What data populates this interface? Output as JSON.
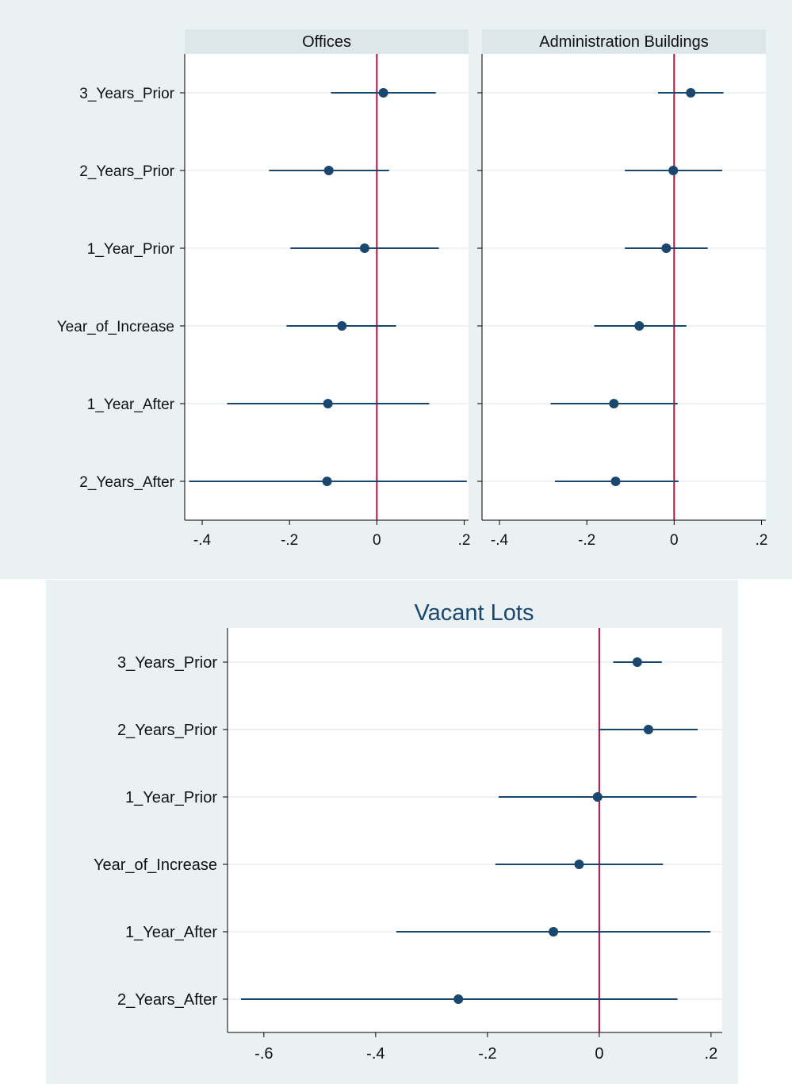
{
  "chart_data": [
    {
      "type": "scatter",
      "subtype": "coefficient-plot",
      "panel": "Offices",
      "categories": [
        "3_Years_Prior",
        "2_Years_Prior",
        "1_Year_Prior",
        "Year_of_Increase",
        "1_Year_After",
        "2_Years_After"
      ],
      "estimates": [
        0.015,
        -0.11,
        -0.028,
        -0.08,
        -0.112,
        -0.114
      ],
      "ci_low": [
        -0.105,
        -0.247,
        -0.198,
        -0.207,
        -0.343,
        -0.43
      ],
      "ci_high": [
        0.135,
        0.028,
        0.142,
        0.044,
        0.12,
        0.206
      ],
      "reference_line": 0,
      "xlim": [
        -0.44,
        0.21
      ],
      "xticks": [
        -0.4,
        -0.2,
        0,
        0.2
      ],
      "xtick_labels": [
        "-.4",
        "-.2",
        "0",
        ".2"
      ],
      "grid": true
    },
    {
      "type": "scatter",
      "subtype": "coefficient-plot",
      "panel": "Administration Buildings",
      "categories": [
        "3_Years_Prior",
        "2_Years_Prior",
        "1_Year_Prior",
        "Year_of_Increase",
        "1_Year_After",
        "2_Years_After"
      ],
      "estimates": [
        0.038,
        -0.002,
        -0.018,
        -0.08,
        -0.138,
        -0.134
      ],
      "ci_low": [
        -0.037,
        -0.113,
        -0.113,
        -0.183,
        -0.283,
        -0.273
      ],
      "ci_high": [
        0.113,
        0.11,
        0.077,
        0.028,
        0.008,
        0.01
      ],
      "reference_line": 0,
      "xlim": [
        -0.44,
        0.21
      ],
      "xticks": [
        -0.4,
        -0.2,
        0,
        0.2
      ],
      "xtick_labels": [
        "-.4",
        "-.2",
        "0",
        ".2"
      ],
      "grid": true
    },
    {
      "type": "scatter",
      "subtype": "coefficient-plot",
      "title": "Vacant Lots",
      "categories": [
        "3_Years_Prior",
        "2_Years_Prior",
        "1_Year_Prior",
        "Year_of_Increase",
        "1_Year_After",
        "2_Years_After"
      ],
      "estimates": [
        0.068,
        0.088,
        -0.003,
        -0.036,
        -0.082,
        -0.252
      ],
      "ci_low": [
        0.025,
        0.0,
        -0.18,
        -0.186,
        -0.363,
        -0.641
      ],
      "ci_high": [
        0.112,
        0.176,
        0.174,
        0.114,
        0.199,
        0.14
      ],
      "reference_line": 0,
      "xlim": [
        -0.665,
        0.22
      ],
      "xticks": [
        -0.6,
        -0.4,
        -0.2,
        0,
        0.2
      ],
      "xtick_labels": [
        "-.6",
        "-.4",
        "-.2",
        "0",
        ".2"
      ],
      "grid": true
    }
  ],
  "colors": {
    "outer_bg": "#eaf1f3",
    "strip_bg": "#dce6eb",
    "plot_bg": "#ffffff",
    "marker": "#1a476f",
    "ci_line": "#1a476f",
    "ref_line": "#b0103a",
    "grid": "#e4eaec",
    "title": "#1a476f"
  }
}
